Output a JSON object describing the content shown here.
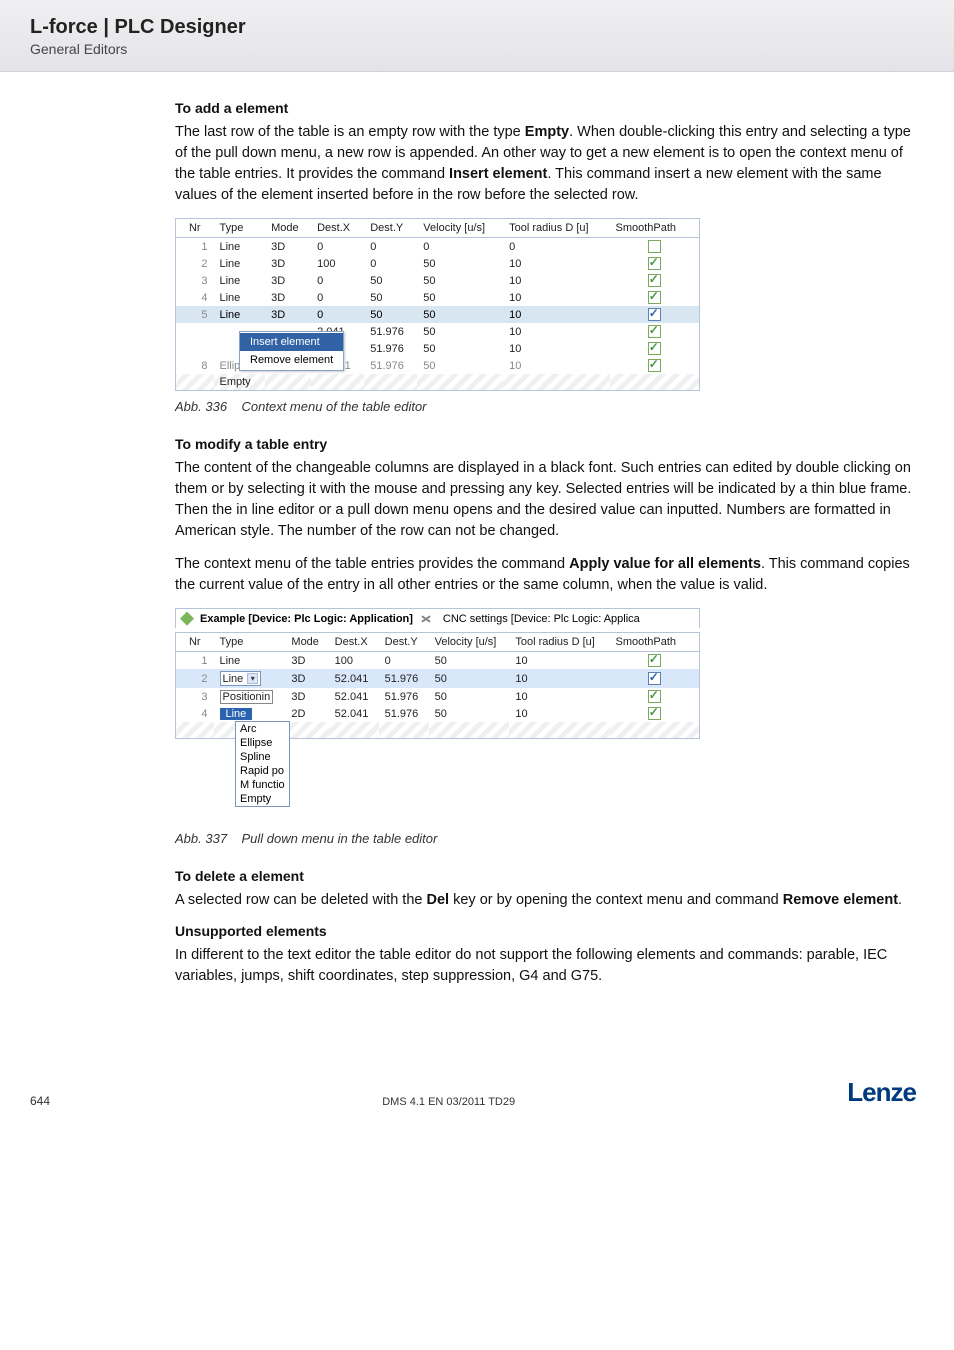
{
  "header": {
    "title": "L-force | PLC Designer",
    "subtitle": "General Editors"
  },
  "sec1": {
    "heading_prefix": "To add ",
    "heading_rest": "a element",
    "p1a": "The last row of the table is an empty row with the type ",
    "p1b": "Empty",
    "p1c": ". When double-clicking this entry and selecting a type of the pull down menu, a new row is appended. An other way to get a new element is to open the context menu of the table entries. It provides the command ",
    "p1d": "Insert element",
    "p1e": ". This command insert a new element with the same values of the element inserted before in the row before the selected row."
  },
  "table1_columns": [
    "Nr",
    "Type",
    "Mode",
    "Dest.X",
    "Dest.Y",
    "Velocity [u/s]",
    "Tool radius D [u]",
    "SmoothPath"
  ],
  "table1_rows": [
    {
      "nr": "1",
      "type": "Line",
      "mode": "3D",
      "dx": "0",
      "dy": "0",
      "v": "0",
      "r": "0",
      "sp": false,
      "blue": false
    },
    {
      "nr": "2",
      "type": "Line",
      "mode": "3D",
      "dx": "100",
      "dy": "0",
      "v": "50",
      "r": "10",
      "sp": true,
      "blue": false
    },
    {
      "nr": "3",
      "type": "Line",
      "mode": "3D",
      "dx": "0",
      "dy": "50",
      "v": "50",
      "r": "10",
      "sp": true,
      "blue": false
    },
    {
      "nr": "4",
      "type": "Line",
      "mode": "3D",
      "dx": "0",
      "dy": "50",
      "v": "50",
      "r": "10",
      "sp": true,
      "blue": false
    },
    {
      "nr": "5",
      "type": "Line",
      "mode": "3D",
      "dx": "0",
      "dy": "50",
      "v": "50",
      "r": "10",
      "sp": true,
      "blue": true,
      "sel": true
    },
    {
      "nr": "",
      "type": "",
      "mode": "",
      "dx": "2.041",
      "dy": "51.976",
      "v": "50",
      "r": "10",
      "sp": true,
      "blue": false,
      "ctx": true,
      "ctxItem": "Insert element",
      "ctxSel": true
    },
    {
      "nr": "",
      "type": "",
      "mode": "",
      "dx": "2.041",
      "dy": "51.976",
      "v": "50",
      "r": "10",
      "sp": true,
      "blue": false,
      "ctx": true,
      "ctxItem": "Remove element"
    },
    {
      "nr": "8",
      "type": "Ellipse",
      "mode": "2D",
      "dx": "52.041",
      "dy": "51.976",
      "v": "50",
      "r": "10",
      "sp": true,
      "blue": false,
      "grey": true
    },
    {
      "nr": "",
      "type": "Empty",
      "mode": "",
      "dx": "",
      "dy": "",
      "v": "",
      "r": "",
      "sp": null,
      "empty": true
    }
  ],
  "caption1_a": "Abb. 336",
  "caption1_b": "Context menu of the table editor",
  "sec2": {
    "heading": "To modify a table entry",
    "p1": "The content of the changeable columns are displayed in a black font. Such entries can edited by double clicking on them or by selecting it with the mouse and pressing any key.  Selected entries will be indicated by a thin blue frame. Then the in line editor or a pull down menu opens and the desired value can inputted. Numbers are formatted in American style. The number of the row can not be changed.",
    "p2a": "The context menu of the table entries provides the command ",
    "p2b": "Apply value for all elements",
    "p2c": ". This command copies the current value of the entry in all other entries or the same column, when the value is valid."
  },
  "tabbar": {
    "tab1": "Example [Device: Plc Logic: Application]",
    "tab2": "CNC settings [Device: Plc Logic: Applica"
  },
  "table2_rows": [
    {
      "nr": "1",
      "type": "Line",
      "mode": "3D",
      "dx": "100",
      "dy": "0",
      "v": "50",
      "r": "10",
      "sp": true
    },
    {
      "nr": "2",
      "type_dd": "Line",
      "mode": "3D",
      "dx": "52.041",
      "dy": "51.976",
      "v": "50",
      "r": "10",
      "sp": true,
      "sel": true,
      "blue": true
    },
    {
      "nr": "3",
      "type_box": "Positionin",
      "mode": "3D",
      "dx": "52.041",
      "dy": "51.976",
      "v": "50",
      "r": "10",
      "sp": true
    },
    {
      "nr": "4",
      "type_sel": "Line",
      "mode": "2D",
      "dx": "52.041",
      "dy": "51.976",
      "v": "50",
      "r": "10",
      "sp": true
    }
  ],
  "dropdown_options": [
    "Arc",
    "Ellipse",
    "Spline",
    "Rapid po",
    "M functio",
    "Empty"
  ],
  "caption2_a": "Abb. 337",
  "caption2_b": "Pull down menu in the table editor",
  "sec3": {
    "heading": "To delete a element",
    "p1a": "A selected row can be deleted with the  ",
    "p1b": "Del",
    "p1c": " key or by opening the context menu and command ",
    "p1d": "Remove element",
    "p1e": "."
  },
  "sec4": {
    "heading": "Unsupported elements",
    "p1": "In different to the text editor the table editor do not support the following elements and commands: parable, IEC variables, jumps, shift coordinates,  step suppression, G4 and G75."
  },
  "footer": {
    "page": "644",
    "center": "DMS 4.1 EN 03/2011 TD29",
    "logo": "Lenze"
  },
  "ctx_menu": {
    "insert": "Insert element",
    "remove": "Remove element"
  }
}
